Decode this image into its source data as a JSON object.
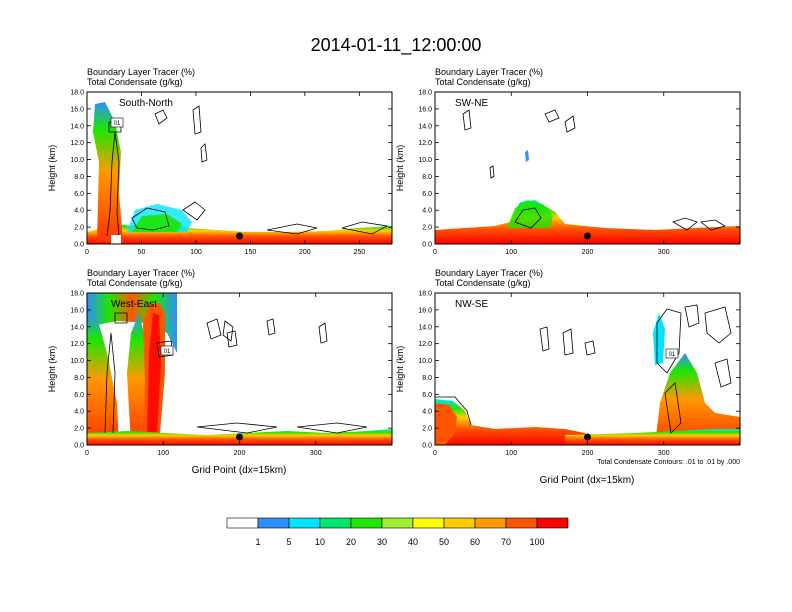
{
  "title": "2014-01-11_12:00:00",
  "footnote": "Total Condensate Contours: .01 to .01 by .000",
  "legend": {
    "labels": [
      "1",
      "5",
      "10",
      "20",
      "30",
      "40",
      "50",
      "60",
      "70",
      "100"
    ],
    "colors": [
      "#ffffff",
      "#2e8fff",
      "#00e5ff",
      "#00e56b",
      "#1ee600",
      "#a0ee30",
      "#ffff00",
      "#ffcc00",
      "#ff9900",
      "#ff5500",
      "#ff0000"
    ]
  },
  "chart_data": [
    {
      "type": "heatmap",
      "panel_label": "South-North",
      "title_line1": "Boundary Layer Tracer   (%)",
      "title_line2": "Total Condensate   (g/kg)",
      "ylabel": "Height (km)",
      "xlabel": "",
      "ylim": [
        0,
        18
      ],
      "xlim": [
        0,
        280
      ],
      "xticks": [
        0,
        50,
        100,
        150,
        200,
        250
      ],
      "yticks": [
        "0.0",
        "2.0",
        "4.0",
        "6.0",
        "8.0",
        "10.0",
        "12.0",
        "14.0",
        "16.0",
        "18.0"
      ],
      "marker_x": 140,
      "contour_label": "01"
    },
    {
      "type": "heatmap",
      "panel_label": "SW-NE",
      "title_line1": "Boundary Layer Tracer   (%)",
      "title_line2": "Total Condensate   (g/kg)",
      "ylabel": "Height (km)",
      "xlabel": "",
      "ylim": [
        0,
        18
      ],
      "xlim": [
        0,
        400
      ],
      "xticks": [
        0,
        100,
        200,
        300
      ],
      "yticks": [
        "0.0",
        "2.0",
        "4.0",
        "6.0",
        "8.0",
        "10.0",
        "12.0",
        "14.0",
        "16.0",
        "18.0"
      ],
      "marker_x": 200,
      "contour_label": ""
    },
    {
      "type": "heatmap",
      "panel_label": "West-East",
      "title_line1": "Boundary Layer Tracer   (%)",
      "title_line2": "Total Condensate   (g/kg)",
      "ylabel": "Height (km)",
      "xlabel": "Grid Point (dx=15km)",
      "ylim": [
        0,
        18
      ],
      "xlim": [
        0,
        400
      ],
      "xticks": [
        0,
        100,
        200,
        300
      ],
      "yticks": [
        "0.0",
        "2.0",
        "4.0",
        "6.0",
        "8.0",
        "10.0",
        "12.0",
        "14.0",
        "16.0",
        "18.0"
      ],
      "marker_x": 200,
      "contour_label": "01"
    },
    {
      "type": "heatmap",
      "panel_label": "NW-SE",
      "title_line1": "Boundary Layer Tracer   (%)",
      "title_line2": "Total Condensate   (g/kg)",
      "ylabel": "Height (km)",
      "xlabel": "Grid Point (dx=15km)",
      "ylim": [
        0,
        18
      ],
      "xlim": [
        0,
        400
      ],
      "xticks": [
        0,
        100,
        200,
        300
      ],
      "yticks": [
        "0.0",
        "2.0",
        "4.0",
        "6.0",
        "8.0",
        "10.0",
        "12.0",
        "14.0",
        "16.0",
        "18.0"
      ],
      "marker_x": 200,
      "contour_label": "01"
    }
  ]
}
